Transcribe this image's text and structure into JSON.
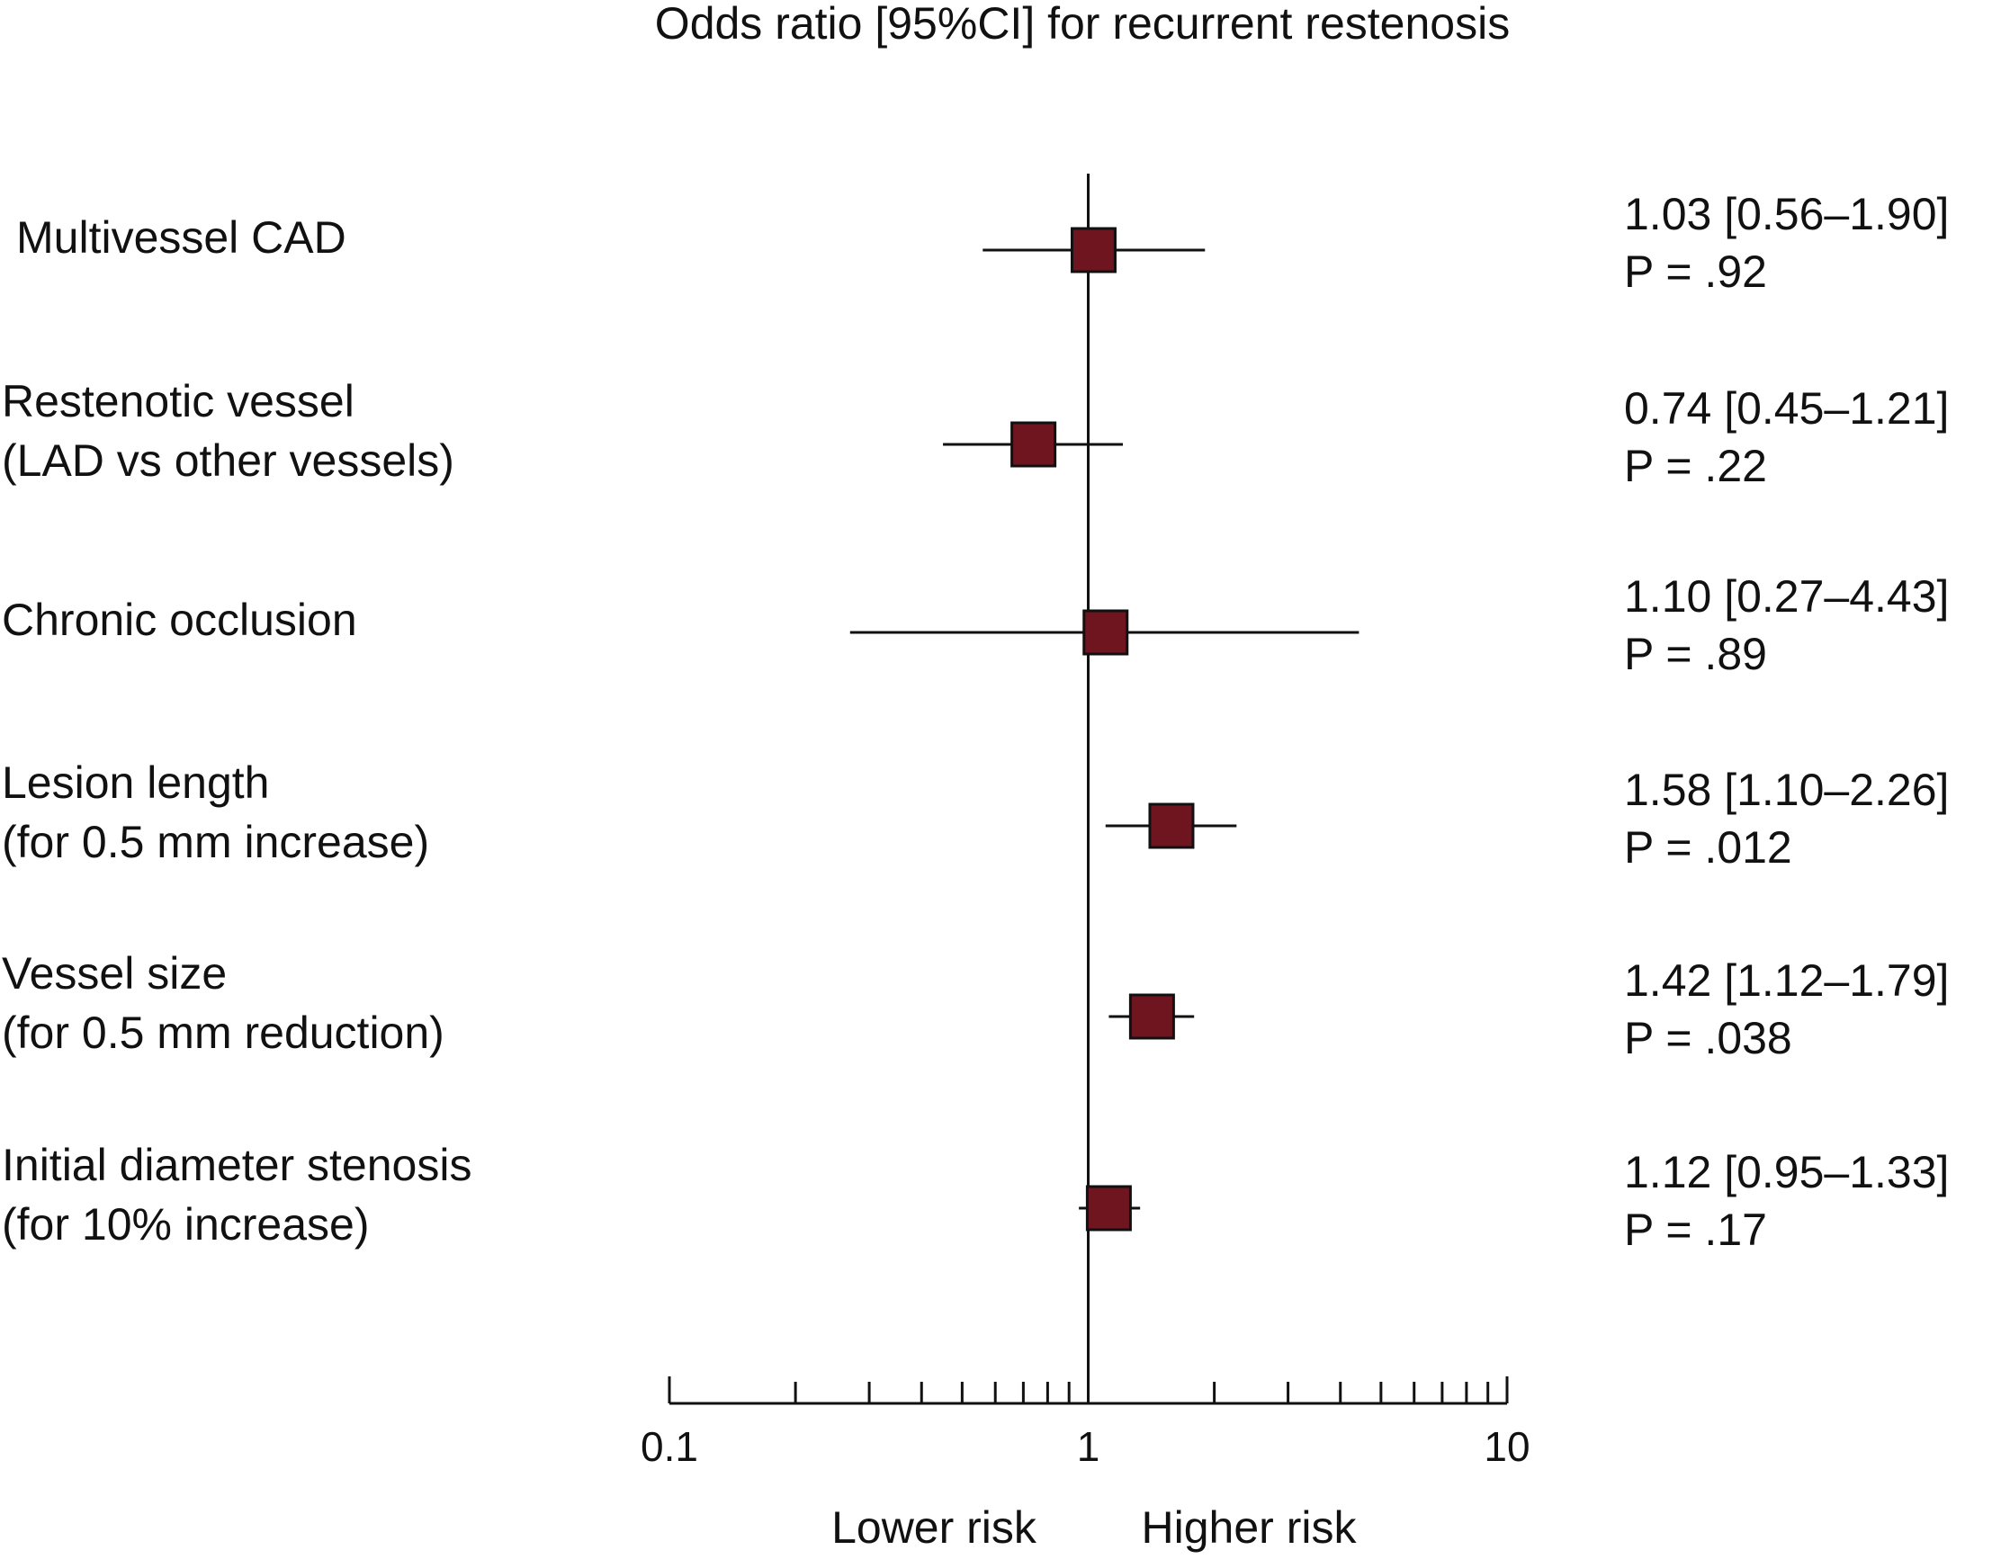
{
  "chart_data": {
    "type": "forest",
    "title": "Odds ratio [95%CI] for recurrent restenosis",
    "rows": [
      {
        "label": [
          "Multivessel CAD"
        ],
        "or": 1.03,
        "ci": [
          0.56,
          1.9
        ],
        "value_label": "1.03 [0.56–1.90]",
        "p": 0.92,
        "p_label": "P = .92"
      },
      {
        "label": [
          "Restenotic vessel",
          "(LAD vs other vessels)"
        ],
        "or": 0.74,
        "ci": [
          0.45,
          1.21
        ],
        "value_label": "0.74 [0.45–1.21]",
        "p": 0.22,
        "p_label": "P = .22"
      },
      {
        "label": [
          "Chronic occlusion"
        ],
        "or": 1.1,
        "ci": [
          0.27,
          4.43
        ],
        "value_label": "1.10 [0.27–4.43]",
        "p": 0.89,
        "p_label": "P = .89"
      },
      {
        "label": [
          "Lesion length",
          "(for 0.5 mm increase)"
        ],
        "or": 1.58,
        "ci": [
          1.1,
          2.26
        ],
        "value_label": "1.58 [1.10–2.26]",
        "p": 0.012,
        "p_label": "P = .012"
      },
      {
        "label": [
          "Vessel size",
          "(for 0.5 mm reduction)"
        ],
        "or": 1.42,
        "ci": [
          1.12,
          1.79
        ],
        "value_label": "1.42 [1.12–1.79]",
        "p": 0.038,
        "p_label": "P = .038"
      },
      {
        "label": [
          "Initial diameter stenosis",
          "(for 10% increase)"
        ],
        "or": 1.12,
        "ci": [
          0.95,
          1.33
        ],
        "value_label": "1.12 [0.95–1.33]",
        "p": 0.17,
        "p_label": "P = .17"
      }
    ],
    "log_x": true,
    "xlim": [
      0.1,
      10
    ],
    "xticks": [
      0.1,
      1,
      10
    ],
    "xminor": [
      0.2,
      0.3,
      0.4,
      0.5,
      0.6,
      0.7,
      0.8,
      0.9,
      2,
      3,
      4,
      5,
      6,
      7,
      8,
      9
    ],
    "ref_line": 1,
    "left_annotation": "Lower risk",
    "right_annotation": "Higher risk",
    "color": "#6e1520"
  }
}
